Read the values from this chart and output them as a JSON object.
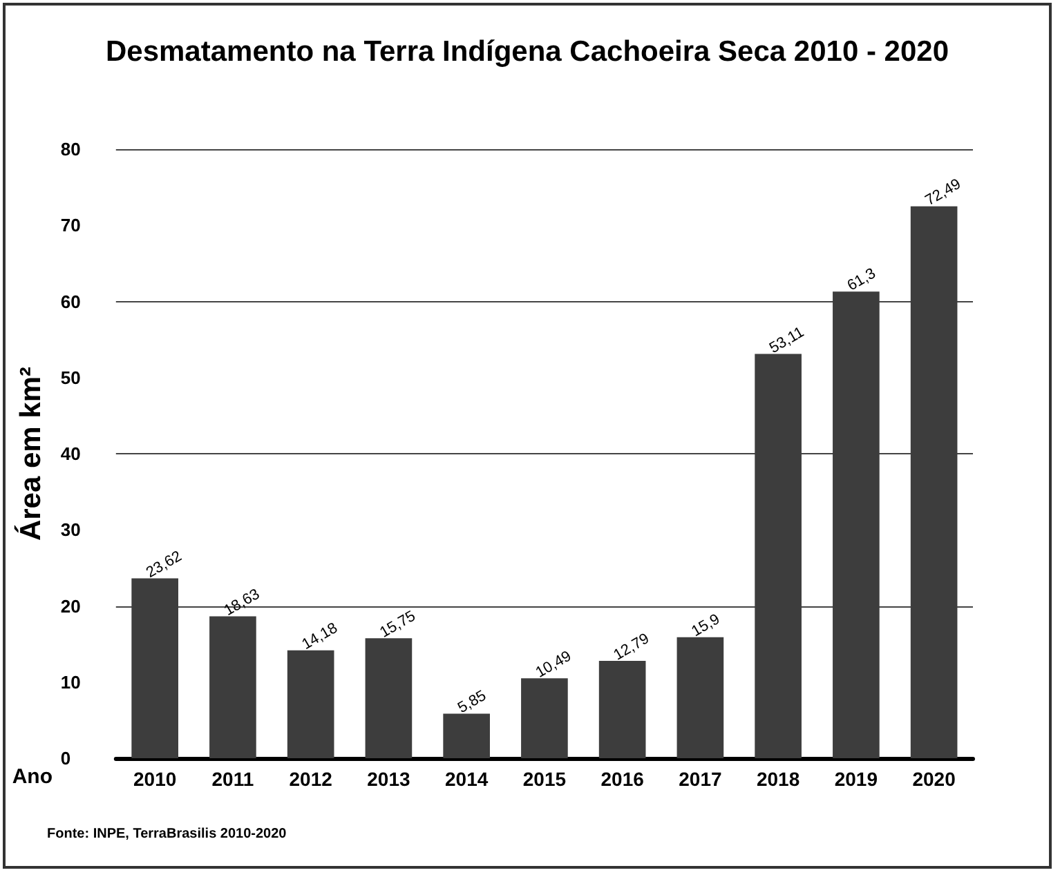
{
  "chart_data": {
    "type": "bar",
    "title": "Desmatamento na Terra Indígena Cachoeira Seca 2010 - 2020",
    "xlabel": "Ano",
    "ylabel": "Área em km²",
    "categories": [
      "2010",
      "2011",
      "2012",
      "2013",
      "2014",
      "2015",
      "2016",
      "2017",
      "2018",
      "2019",
      "2020"
    ],
    "values": [
      23.62,
      18.63,
      14.18,
      15.75,
      5.85,
      10.49,
      12.79,
      15.9,
      53.11,
      61.3,
      72.49
    ],
    "value_labels": [
      "23,62",
      "18,63",
      "14,18",
      "15,75",
      "5,85",
      "10,49",
      "12,79",
      "15,9",
      "53,11",
      "61,3",
      "72,49"
    ],
    "color": "#3d3d3d",
    "ylim": [
      0,
      80
    ],
    "yticks": [
      0,
      10,
      20,
      30,
      40,
      50,
      60,
      70,
      80
    ],
    "grid": "y",
    "annotations": [
      "Fonte: INPE, TerraBrasilis 2010-2020"
    ]
  }
}
